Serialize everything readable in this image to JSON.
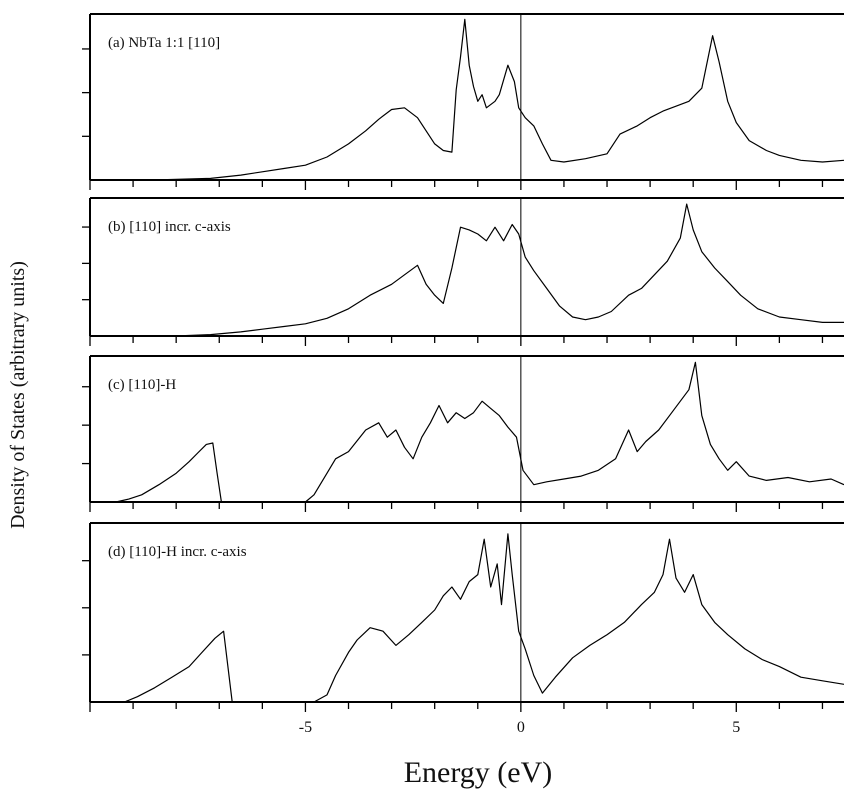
{
  "chart_data": {
    "type": "line",
    "ylabel": "Density of States (arbitrary units)",
    "xlabel": "Energy (eV)",
    "xlim": [
      -10,
      7.5
    ],
    "x_ticks": [
      -5,
      0,
      5
    ],
    "x_tick_labels": [
      "-5",
      "0",
      "5"
    ],
    "fermi_level": 0,
    "grid": false,
    "panels": [
      {
        "label": "(a) NbTa 1:1 [110]",
        "ylim": [
          0,
          1.0
        ],
        "points": [
          [
            -10,
            0
          ],
          [
            -8.5,
            0
          ],
          [
            -7.2,
            0.01
          ],
          [
            -6.5,
            0.03
          ],
          [
            -6,
            0.05
          ],
          [
            -5.5,
            0.07
          ],
          [
            -5,
            0.09
          ],
          [
            -4.5,
            0.14
          ],
          [
            -4,
            0.22
          ],
          [
            -3.6,
            0.3
          ],
          [
            -3.3,
            0.37
          ],
          [
            -3,
            0.43
          ],
          [
            -2.7,
            0.44
          ],
          [
            -2.4,
            0.38
          ],
          [
            -2.2,
            0.3
          ],
          [
            -2,
            0.22
          ],
          [
            -1.8,
            0.18
          ],
          [
            -1.6,
            0.17
          ],
          [
            -1.5,
            0.55
          ],
          [
            -1.4,
            0.75
          ],
          [
            -1.3,
            0.98
          ],
          [
            -1.2,
            0.7
          ],
          [
            -1.1,
            0.57
          ],
          [
            -1,
            0.48
          ],
          [
            -0.9,
            0.52
          ],
          [
            -0.8,
            0.44
          ],
          [
            -0.6,
            0.48
          ],
          [
            -0.5,
            0.52
          ],
          [
            -0.3,
            0.7
          ],
          [
            -0.15,
            0.6
          ],
          [
            -0.05,
            0.44
          ],
          [
            0.1,
            0.38
          ],
          [
            0.3,
            0.33
          ],
          [
            0.5,
            0.22
          ],
          [
            0.7,
            0.12
          ],
          [
            1,
            0.11
          ],
          [
            1.5,
            0.13
          ],
          [
            2,
            0.16
          ],
          [
            2.3,
            0.28
          ],
          [
            2.7,
            0.33
          ],
          [
            3,
            0.38
          ],
          [
            3.3,
            0.42
          ],
          [
            3.6,
            0.45
          ],
          [
            3.9,
            0.48
          ],
          [
            4.2,
            0.56
          ],
          [
            4.45,
            0.88
          ],
          [
            4.6,
            0.72
          ],
          [
            4.8,
            0.48
          ],
          [
            5,
            0.35
          ],
          [
            5.3,
            0.24
          ],
          [
            5.7,
            0.18
          ],
          [
            6,
            0.15
          ],
          [
            6.5,
            0.12
          ],
          [
            7,
            0.11
          ],
          [
            7.5,
            0.12
          ]
        ]
      },
      {
        "label": "(b) [110] incr. c-axis",
        "ylim": [
          0,
          1.0
        ],
        "points": [
          [
            -10,
            0
          ],
          [
            -8,
            0
          ],
          [
            -7.2,
            0.01
          ],
          [
            -6.5,
            0.03
          ],
          [
            -6,
            0.05
          ],
          [
            -5.5,
            0.07
          ],
          [
            -5,
            0.09
          ],
          [
            -4.5,
            0.13
          ],
          [
            -4,
            0.2
          ],
          [
            -3.5,
            0.3
          ],
          [
            -3,
            0.38
          ],
          [
            -2.7,
            0.45
          ],
          [
            -2.4,
            0.52
          ],
          [
            -2.2,
            0.38
          ],
          [
            -2,
            0.3
          ],
          [
            -1.8,
            0.24
          ],
          [
            -1.6,
            0.5
          ],
          [
            -1.4,
            0.8
          ],
          [
            -1.2,
            0.78
          ],
          [
            -1,
            0.75
          ],
          [
            -0.8,
            0.7
          ],
          [
            -0.6,
            0.8
          ],
          [
            -0.4,
            0.7
          ],
          [
            -0.2,
            0.82
          ],
          [
            -0.05,
            0.75
          ],
          [
            0.1,
            0.58
          ],
          [
            0.3,
            0.48
          ],
          [
            0.6,
            0.35
          ],
          [
            0.9,
            0.22
          ],
          [
            1.2,
            0.14
          ],
          [
            1.5,
            0.12
          ],
          [
            1.8,
            0.14
          ],
          [
            2.1,
            0.18
          ],
          [
            2.5,
            0.3
          ],
          [
            2.8,
            0.35
          ],
          [
            3.1,
            0.45
          ],
          [
            3.4,
            0.55
          ],
          [
            3.7,
            0.72
          ],
          [
            3.85,
            0.97
          ],
          [
            4,
            0.78
          ],
          [
            4.2,
            0.62
          ],
          [
            4.5,
            0.5
          ],
          [
            4.8,
            0.4
          ],
          [
            5.1,
            0.3
          ],
          [
            5.5,
            0.2
          ],
          [
            6,
            0.14
          ],
          [
            6.5,
            0.12
          ],
          [
            7,
            0.1
          ],
          [
            7.5,
            0.1
          ]
        ]
      },
      {
        "label": "(c) [110]-H",
        "ylim": [
          0,
          1.0
        ],
        "points": [
          [
            -10,
            0
          ],
          [
            -9.4,
            0
          ],
          [
            -9.1,
            0.02
          ],
          [
            -8.8,
            0.05
          ],
          [
            -8.4,
            0.12
          ],
          [
            -8,
            0.2
          ],
          [
            -7.7,
            0.28
          ],
          [
            -7.5,
            0.34
          ],
          [
            -7.3,
            0.4
          ],
          [
            -7.15,
            0.41
          ],
          [
            -7.05,
            0.2
          ],
          [
            -6.95,
            0
          ],
          [
            -5,
            0
          ],
          [
            -4.8,
            0.05
          ],
          [
            -4.5,
            0.2
          ],
          [
            -4.3,
            0.3
          ],
          [
            -4,
            0.35
          ],
          [
            -3.6,
            0.5
          ],
          [
            -3.3,
            0.55
          ],
          [
            -3.1,
            0.45
          ],
          [
            -2.9,
            0.5
          ],
          [
            -2.7,
            0.38
          ],
          [
            -2.5,
            0.3
          ],
          [
            -2.3,
            0.45
          ],
          [
            -2.1,
            0.55
          ],
          [
            -1.9,
            0.67
          ],
          [
            -1.7,
            0.55
          ],
          [
            -1.5,
            0.62
          ],
          [
            -1.3,
            0.58
          ],
          [
            -1.1,
            0.62
          ],
          [
            -0.9,
            0.7
          ],
          [
            -0.7,
            0.65
          ],
          [
            -0.5,
            0.6
          ],
          [
            -0.3,
            0.52
          ],
          [
            -0.1,
            0.45
          ],
          [
            0.05,
            0.22
          ],
          [
            0.3,
            0.12
          ],
          [
            0.6,
            0.14
          ],
          [
            1,
            0.16
          ],
          [
            1.4,
            0.18
          ],
          [
            1.8,
            0.22
          ],
          [
            2.2,
            0.3
          ],
          [
            2.5,
            0.5
          ],
          [
            2.7,
            0.35
          ],
          [
            2.9,
            0.42
          ],
          [
            3.2,
            0.5
          ],
          [
            3.5,
            0.62
          ],
          [
            3.7,
            0.7
          ],
          [
            3.9,
            0.78
          ],
          [
            4.05,
            0.97
          ],
          [
            4.2,
            0.6
          ],
          [
            4.4,
            0.4
          ],
          [
            4.6,
            0.3
          ],
          [
            4.8,
            0.22
          ],
          [
            5,
            0.28
          ],
          [
            5.3,
            0.18
          ],
          [
            5.7,
            0.15
          ],
          [
            6.2,
            0.17
          ],
          [
            6.7,
            0.14
          ],
          [
            7.2,
            0.16
          ],
          [
            7.5,
            0.12
          ]
        ]
      },
      {
        "label": "(d) [110]-H incr. c-axis",
        "ylim": [
          0,
          1.0
        ],
        "points": [
          [
            -10,
            0
          ],
          [
            -9.2,
            0
          ],
          [
            -8.9,
            0.03
          ],
          [
            -8.5,
            0.08
          ],
          [
            -8.1,
            0.14
          ],
          [
            -7.7,
            0.2
          ],
          [
            -7.4,
            0.28
          ],
          [
            -7.1,
            0.36
          ],
          [
            -6.9,
            0.4
          ],
          [
            -6.8,
            0.2
          ],
          [
            -6.7,
            0
          ],
          [
            -4.8,
            0
          ],
          [
            -4.5,
            0.04
          ],
          [
            -4.3,
            0.15
          ],
          [
            -4,
            0.28
          ],
          [
            -3.8,
            0.35
          ],
          [
            -3.5,
            0.42
          ],
          [
            -3.2,
            0.4
          ],
          [
            -2.9,
            0.32
          ],
          [
            -2.6,
            0.38
          ],
          [
            -2.3,
            0.45
          ],
          [
            -2,
            0.52
          ],
          [
            -1.8,
            0.6
          ],
          [
            -1.6,
            0.65
          ],
          [
            -1.4,
            0.58
          ],
          [
            -1.2,
            0.68
          ],
          [
            -1,
            0.72
          ],
          [
            -0.85,
            0.92
          ],
          [
            -0.7,
            0.65
          ],
          [
            -0.55,
            0.78
          ],
          [
            -0.45,
            0.55
          ],
          [
            -0.3,
            0.95
          ],
          [
            -0.2,
            0.72
          ],
          [
            -0.05,
            0.4
          ],
          [
            0.1,
            0.3
          ],
          [
            0.3,
            0.15
          ],
          [
            0.5,
            0.05
          ],
          [
            0.8,
            0.14
          ],
          [
            1.2,
            0.25
          ],
          [
            1.6,
            0.32
          ],
          [
            2,
            0.38
          ],
          [
            2.4,
            0.45
          ],
          [
            2.8,
            0.55
          ],
          [
            3.1,
            0.62
          ],
          [
            3.3,
            0.72
          ],
          [
            3.45,
            0.92
          ],
          [
            3.6,
            0.7
          ],
          [
            3.8,
            0.62
          ],
          [
            4,
            0.72
          ],
          [
            4.2,
            0.55
          ],
          [
            4.5,
            0.45
          ],
          [
            4.8,
            0.38
          ],
          [
            5.2,
            0.3
          ],
          [
            5.6,
            0.24
          ],
          [
            6,
            0.2
          ],
          [
            6.5,
            0.14
          ],
          [
            7,
            0.12
          ],
          [
            7.5,
            0.1
          ]
        ]
      }
    ]
  }
}
